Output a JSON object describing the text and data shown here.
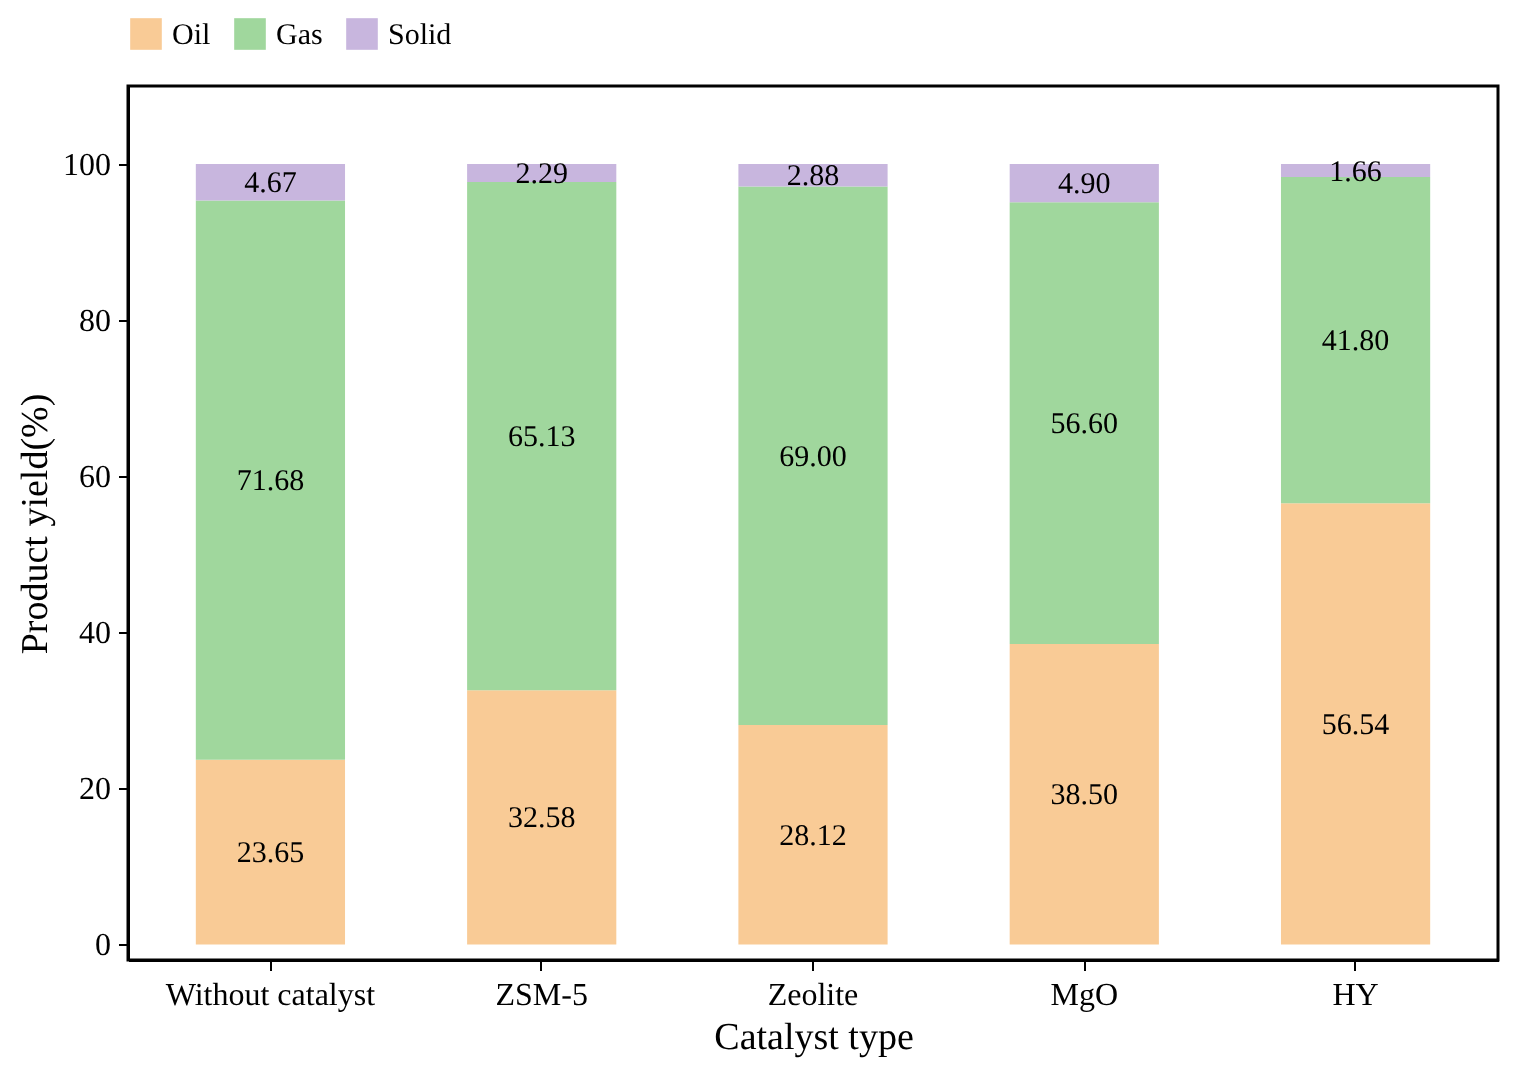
{
  "chart_data": {
    "type": "bar",
    "stacked": true,
    "xlabel": "Catalyst type",
    "ylabel": "Product yield(%)",
    "categories": [
      "Without catalyst",
      "ZSM-5",
      "Zeolite",
      "MgO",
      "HY"
    ],
    "series": [
      {
        "name": "Oil",
        "color": "#f9cb96",
        "values": [
          23.65,
          32.58,
          28.12,
          38.5,
          56.54
        ],
        "value_labels": [
          "23.65",
          "32.58",
          "28.12",
          "38.50",
          "56.54"
        ]
      },
      {
        "name": "Gas",
        "color": "#a0d79d",
        "values": [
          71.68,
          65.13,
          69.0,
          56.6,
          41.8
        ],
        "value_labels": [
          "71.68",
          "65.13",
          "69.00",
          "56.60",
          "41.80"
        ]
      },
      {
        "name": "Solid",
        "color": "#c8b6de",
        "values": [
          4.67,
          2.29,
          2.88,
          4.9,
          1.66
        ],
        "value_labels": [
          "4.67",
          "2.29",
          "2.88",
          "4.90",
          "1.66"
        ]
      }
    ],
    "ylim": [
      -2,
      110
    ],
    "yticks": [
      0,
      20,
      40,
      60,
      80,
      100
    ],
    "grid": false,
    "legend": "top"
  }
}
